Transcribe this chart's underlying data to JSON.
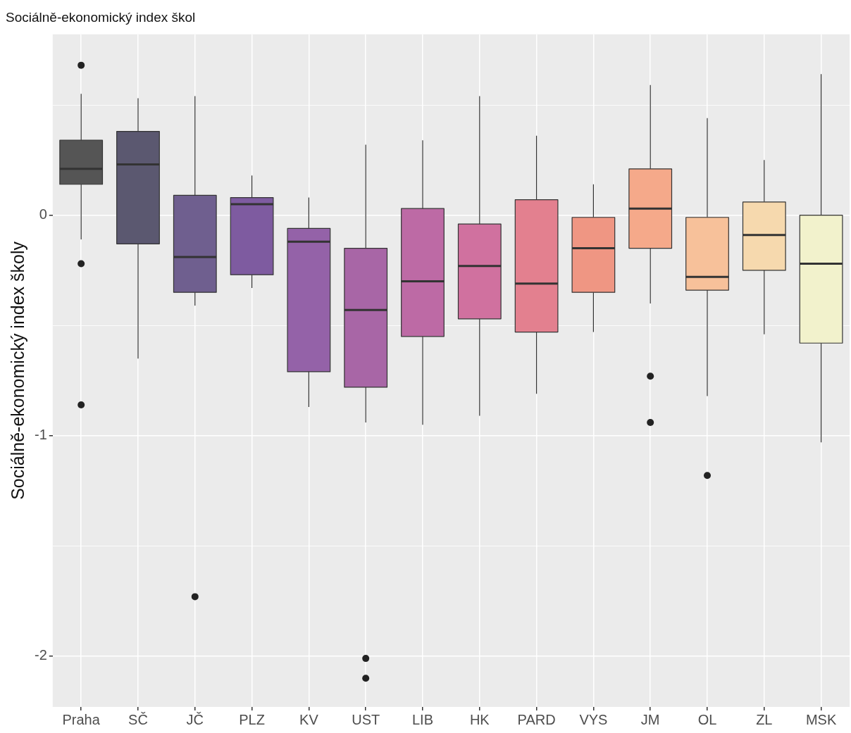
{
  "chart_data": {
    "type": "box",
    "title": "Sociálně-ekonomický index škol",
    "ylabel": "Sociálně-ekonomický index školy",
    "categories": [
      "Praha",
      "SČ",
      "JČ",
      "PLZ",
      "KV",
      "UST",
      "LIB",
      "HK",
      "PARD",
      "VYS",
      "JM",
      "OL",
      "ZL",
      "MSK"
    ],
    "colors": [
      "#555555",
      "#5b5870",
      "#6f5f8f",
      "#7e5ba0",
      "#9462a8",
      "#a866a6",
      "#bd6aa5",
      "#d0719f",
      "#e3808f",
      "#ef9683",
      "#f5a98a",
      "#f7c19a",
      "#f6d9ae",
      "#f2f2cc"
    ],
    "boxes": [
      {
        "low": -0.11,
        "q1": 0.14,
        "median": 0.21,
        "q3": 0.34,
        "high": 0.55,
        "outliers": [
          0.68,
          -0.22,
          -0.86
        ]
      },
      {
        "low": -0.65,
        "q1": -0.13,
        "median": 0.23,
        "q3": 0.38,
        "high": 0.53
      },
      {
        "low": -0.41,
        "q1": -0.35,
        "median": -0.19,
        "q3": 0.09,
        "high": 0.54,
        "outliers": [
          -1.73
        ]
      },
      {
        "low": -0.33,
        "q1": -0.27,
        "median": 0.05,
        "q3": 0.08,
        "high": 0.18
      },
      {
        "low": -0.87,
        "q1": -0.71,
        "median": -0.12,
        "q3": -0.06,
        "high": 0.08
      },
      {
        "low": -0.94,
        "q1": -0.78,
        "median": -0.43,
        "q3": -0.15,
        "high": 0.32,
        "outliers": [
          -2.01,
          -2.1
        ]
      },
      {
        "low": -0.95,
        "q1": -0.55,
        "median": -0.3,
        "q3": 0.03,
        "high": 0.34
      },
      {
        "low": -0.91,
        "q1": -0.47,
        "median": -0.23,
        "q3": -0.04,
        "high": 0.54
      },
      {
        "low": -0.81,
        "q1": -0.53,
        "median": -0.31,
        "q3": 0.07,
        "high": 0.36
      },
      {
        "low": -0.53,
        "q1": -0.35,
        "median": -0.15,
        "q3": -0.01,
        "high": 0.14
      },
      {
        "low": -0.4,
        "q1": -0.15,
        "median": 0.03,
        "q3": 0.21,
        "high": 0.59,
        "outliers": [
          -0.73,
          -0.94
        ]
      },
      {
        "low": -0.82,
        "q1": -0.34,
        "median": -0.28,
        "q3": -0.01,
        "high": 0.44,
        "outliers": [
          -1.18
        ]
      },
      {
        "low": -0.54,
        "q1": -0.25,
        "median": -0.09,
        "q3": 0.06,
        "high": 0.25
      },
      {
        "low": -1.03,
        "q1": -0.58,
        "median": -0.22,
        "q3": 0.0,
        "high": 0.64
      }
    ],
    "ylim": [
      -2.23,
      0.82
    ],
    "yticks": [
      -2,
      {
        "value": -1.5,
        "label": null
      },
      -1,
      {
        "value": -0.5,
        "label": null
      },
      0,
      {
        "value": 0.5,
        "label": null
      }
    ],
    "grid": true,
    "legend": false
  }
}
